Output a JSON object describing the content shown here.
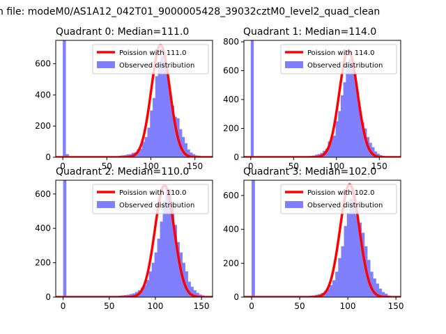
{
  "figure": {
    "suptitle": "n file: modeM0/AS1A12_042T01_9000005428_39032cztM0_level2_quad_clean"
  },
  "chart_data": [
    {
      "type": "bar",
      "title": "Quadrant 0: Median=111.0",
      "xlim": [
        -8,
        170
      ],
      "ylim": [
        0,
        750
      ],
      "xticks": [
        0,
        50,
        100,
        150
      ],
      "yticks": [
        0,
        200,
        400,
        600
      ],
      "legend": {
        "placement": "top-right",
        "fit_label": "Poission with 111.0",
        "hist_label": "Observed distribution"
      },
      "colors": {
        "fit": "#ff0000",
        "hist": "#8080ff"
      },
      "mean": 111,
      "histogram": {
        "bin_width": 3.5,
        "bins": [
          [
            0,
            750
          ],
          [
            3.5,
            20
          ],
          [
            63,
            10
          ],
          [
            66,
            12
          ],
          [
            69,
            14
          ],
          [
            72,
            18
          ],
          [
            75,
            20
          ],
          [
            78,
            28
          ],
          [
            81,
            32
          ],
          [
            84,
            50
          ],
          [
            87,
            55
          ],
          [
            90,
            100
          ],
          [
            93,
            130
          ],
          [
            96,
            190
          ],
          [
            99,
            300
          ],
          [
            102,
            380
          ],
          [
            105,
            520
          ],
          [
            108,
            600
          ],
          [
            111,
            650
          ],
          [
            114,
            610
          ],
          [
            117,
            560
          ],
          [
            120,
            420
          ],
          [
            123,
            330
          ],
          [
            126,
            260
          ],
          [
            129,
            250
          ],
          [
            132,
            180
          ],
          [
            135,
            130
          ],
          [
            138,
            90
          ],
          [
            141,
            50
          ],
          [
            144,
            30
          ],
          [
            147,
            20
          ],
          [
            150,
            12
          ],
          [
            153,
            10
          ],
          [
            156,
            6
          ],
          [
            159,
            3
          ]
        ]
      },
      "fit_peak": 720
    },
    {
      "type": "bar",
      "title": "Quadrant 1: Median=114.0",
      "xlim": [
        -8,
        175
      ],
      "ylim": [
        0,
        810
      ],
      "xticks": [
        0,
        50,
        100,
        150
      ],
      "yticks": [
        0,
        200,
        400,
        600,
        800
      ],
      "legend": {
        "placement": "top-right",
        "fit_label": "Poission with 114.0",
        "hist_label": "Observed distribution"
      },
      "colors": {
        "fit": "#ff0000",
        "hist": "#8080ff"
      },
      "mean": 114,
      "histogram": {
        "bin_width": 3.5,
        "bins": [
          [
            0,
            810
          ],
          [
            66,
            8
          ],
          [
            69,
            10
          ],
          [
            72,
            12
          ],
          [
            75,
            18
          ],
          [
            78,
            22
          ],
          [
            81,
            30
          ],
          [
            84,
            45
          ],
          [
            87,
            60
          ],
          [
            90,
            110
          ],
          [
            93,
            140
          ],
          [
            96,
            150
          ],
          [
            99,
            250
          ],
          [
            102,
            320
          ],
          [
            105,
            430
          ],
          [
            108,
            520
          ],
          [
            111,
            640
          ],
          [
            114,
            680
          ],
          [
            117,
            620
          ],
          [
            120,
            580
          ],
          [
            123,
            450
          ],
          [
            126,
            320
          ],
          [
            129,
            240
          ],
          [
            132,
            200
          ],
          [
            135,
            140
          ],
          [
            138,
            100
          ],
          [
            141,
            70
          ],
          [
            144,
            40
          ],
          [
            147,
            25
          ],
          [
            150,
            15
          ],
          [
            153,
            10
          ],
          [
            156,
            5
          ]
        ]
      },
      "fit_peak": 740
    },
    {
      "type": "bar",
      "title": "Quadrant 2: Median=110.0",
      "xlim": [
        -8,
        162
      ],
      "ylim": [
        0,
        680
      ],
      "xticks": [
        0,
        50,
        100,
        150
      ],
      "yticks": [
        0,
        200,
        400,
        600
      ],
      "legend": {
        "placement": "top-right",
        "fit_label": "Poission with 110.0",
        "hist_label": "Observed distribution"
      },
      "colors": {
        "fit": "#ff0000",
        "hist": "#8080ff"
      },
      "mean": 110,
      "histogram": {
        "bin_width": 3.5,
        "bins": [
          [
            0,
            680
          ],
          [
            60,
            8
          ],
          [
            63,
            10
          ],
          [
            66,
            12
          ],
          [
            69,
            14
          ],
          [
            72,
            18
          ],
          [
            75,
            22
          ],
          [
            78,
            30
          ],
          [
            81,
            40
          ],
          [
            84,
            55
          ],
          [
            87,
            70
          ],
          [
            90,
            100
          ],
          [
            93,
            150
          ],
          [
            96,
            200
          ],
          [
            99,
            260
          ],
          [
            102,
            340
          ],
          [
            105,
            440
          ],
          [
            108,
            560
          ],
          [
            111,
            620
          ],
          [
            114,
            630
          ],
          [
            117,
            540
          ],
          [
            120,
            420
          ],
          [
            123,
            320
          ],
          [
            126,
            260
          ],
          [
            129,
            200
          ],
          [
            132,
            150
          ],
          [
            135,
            90
          ],
          [
            138,
            60
          ],
          [
            141,
            40
          ],
          [
            144,
            25
          ],
          [
            147,
            15
          ],
          [
            150,
            10
          ],
          [
            153,
            5
          ],
          [
            156,
            3
          ]
        ]
      },
      "fit_peak": 650
    },
    {
      "type": "bar",
      "title": "Quadrant 3: Median=102.0",
      "xlim": [
        -8,
        155
      ],
      "ylim": [
        0,
        690
      ],
      "xticks": [
        0,
        50,
        100,
        150
      ],
      "yticks": [
        0,
        200,
        400,
        600
      ],
      "legend": {
        "placement": "top-right",
        "fit_label": "Poission with 102.0",
        "hist_label": "Observed distribution"
      },
      "colors": {
        "fit": "#ff0000",
        "hist": "#8080ff"
      },
      "mean": 102,
      "histogram": {
        "bin_width": 3.5,
        "bins": [
          [
            0,
            690
          ],
          [
            57,
            6
          ],
          [
            60,
            8
          ],
          [
            63,
            10
          ],
          [
            66,
            14
          ],
          [
            69,
            18
          ],
          [
            72,
            25
          ],
          [
            75,
            35
          ],
          [
            78,
            50
          ],
          [
            81,
            70
          ],
          [
            84,
            100
          ],
          [
            87,
            150
          ],
          [
            90,
            230
          ],
          [
            93,
            300
          ],
          [
            96,
            420
          ],
          [
            99,
            500
          ],
          [
            102,
            580
          ],
          [
            105,
            620
          ],
          [
            108,
            480
          ],
          [
            111,
            440
          ],
          [
            114,
            380
          ],
          [
            117,
            300
          ],
          [
            120,
            220
          ],
          [
            123,
            150
          ],
          [
            126,
            110
          ],
          [
            129,
            80
          ],
          [
            132,
            50
          ],
          [
            135,
            30
          ],
          [
            138,
            20
          ],
          [
            141,
            10
          ],
          [
            144,
            5
          ]
        ]
      },
      "fit_peak": 665
    }
  ]
}
